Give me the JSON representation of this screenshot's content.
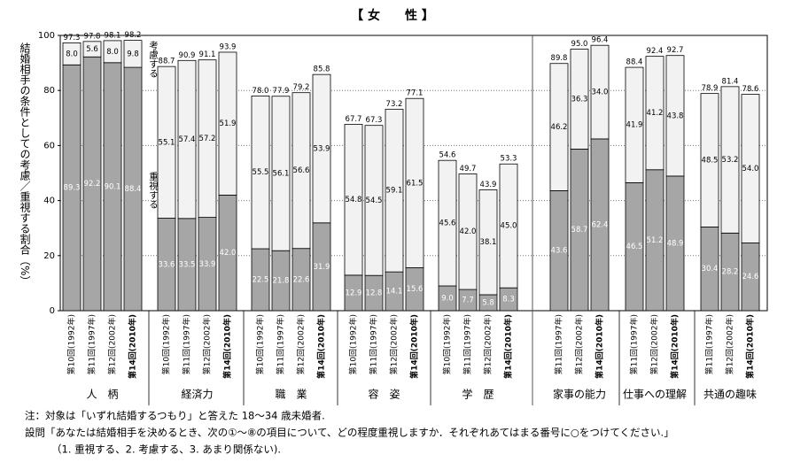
{
  "chart_data": {
    "type": "bar",
    "stacked": true,
    "title": "【 女　　性 】",
    "y_label": "結婚相手の条件としての考慮／重視する割合（%）",
    "ylim": [
      0,
      100
    ],
    "yticks": [
      0,
      20,
      40,
      60,
      80,
      100
    ],
    "grid": true,
    "series": [
      {
        "name": "重視する",
        "color": "#a6a6a6"
      },
      {
        "name": "考慮する",
        "color": "#f2f2f2"
      }
    ],
    "groups": [
      {
        "label": "人　柄",
        "categories": [
          "第10回(1992年)",
          "第11回(1997年)",
          "第12回(2002年)",
          "第14回(2010年)"
        ],
        "values": [
          [
            89.3,
            92.2,
            90.1,
            88.4
          ],
          [
            8.0,
            5.6,
            8.0,
            9.8
          ]
        ],
        "value_labels": [
          [
            "89.3",
            "92.2",
            "90.1",
            "88.4"
          ],
          [
            "8.0",
            "5.6",
            "8.0",
            "9.8"
          ]
        ],
        "totals": [
          97.3,
          97.8,
          98.1,
          98.2
        ],
        "total_labels": [
          "97.3",
          "97.8",
          "98.1",
          "98.2"
        ]
      },
      {
        "label": "経済力",
        "categories": [
          "第10回(1992年)",
          "第11回(1997年)",
          "第12回(2002年)",
          "第14回(2010年)"
        ],
        "values": [
          [
            33.6,
            33.5,
            33.9,
            42.0
          ],
          [
            55.1,
            57.4,
            57.2,
            51.9
          ]
        ],
        "value_labels": [
          [
            "33.6",
            "33.5",
            "33.9",
            "42.0"
          ],
          [
            "55.1",
            "57.4",
            "57.2",
            "51.9"
          ]
        ],
        "totals": [
          88.7,
          90.9,
          91.1,
          93.9
        ],
        "total_labels": [
          "88.7",
          "90.9",
          "91.1",
          "93.9"
        ]
      },
      {
        "label": "職　業",
        "categories": [
          "第10回(1992年)",
          "第11回(1997年)",
          "第12回(2002年)",
          "第14回(2010年)"
        ],
        "values": [
          [
            22.5,
            21.8,
            22.6,
            31.9
          ],
          [
            55.5,
            56.1,
            56.6,
            53.9
          ]
        ],
        "value_labels": [
          [
            "22.5",
            "21.8",
            "22.6",
            "31.9"
          ],
          [
            "55.5",
            "56.1",
            "56.6",
            "53.9"
          ]
        ],
        "totals": [
          78.0,
          77.9,
          79.2,
          85.8
        ],
        "total_labels": [
          "78.0",
          "77.9",
          "79.2",
          "85.8"
        ]
      },
      {
        "label": "容　姿",
        "categories": [
          "第10回(1992年)",
          "第11回(1997年)",
          "第12回(2002年)",
          "第14回(2010年)"
        ],
        "values": [
          [
            12.9,
            12.8,
            14.1,
            15.6
          ],
          [
            54.8,
            54.5,
            59.1,
            61.5
          ]
        ],
        "value_labels": [
          [
            "12.9",
            "12.8",
            "14.1",
            "15.6"
          ],
          [
            "54.8",
            "54.5",
            "59.1",
            "61.5"
          ]
        ],
        "totals": [
          67.7,
          67.3,
          73.2,
          77.1
        ],
        "total_labels": [
          "67.7",
          "67.3",
          "73.2",
          "77.1"
        ]
      },
      {
        "label": "学　歴",
        "categories": [
          "第10回(1992年)",
          "第11回(1997年)",
          "第12回(2002年)",
          "第14回(2010年)"
        ],
        "values": [
          [
            9.0,
            7.7,
            5.8,
            8.3
          ],
          [
            45.6,
            42.0,
            38.1,
            45.0
          ]
        ],
        "value_labels": [
          [
            "9.0",
            "7.7",
            "5.8",
            "8.3"
          ],
          [
            "45.6",
            "42.0",
            "38.1",
            "45.0"
          ]
        ],
        "totals": [
          54.6,
          49.7,
          43.9,
          53.3
        ],
        "total_labels": [
          "54.6",
          "49.7",
          "43.9",
          "53.3"
        ]
      },
      {
        "label": "家事の能力",
        "categories": [
          "第11回(1997年)",
          "第12回(2002年)",
          "第14回(2010年)"
        ],
        "values": [
          [
            43.6,
            58.7,
            62.4
          ],
          [
            46.2,
            36.3,
            34.0
          ]
        ],
        "value_labels": [
          [
            "43.6",
            "58.7",
            "62.4"
          ],
          [
            "46.2",
            "36.3",
            "34.0"
          ]
        ],
        "totals": [
          89.8,
          95.0,
          96.4
        ],
        "total_labels": [
          "89.8",
          "95.0",
          "96.4"
        ]
      },
      {
        "label": "仕事への理解",
        "categories": [
          "第11回(1997年)",
          "第12回(2002年)",
          "第14回(2010年)"
        ],
        "values": [
          [
            46.5,
            51.2,
            48.9
          ],
          [
            41.9,
            41.2,
            43.8
          ]
        ],
        "value_labels": [
          [
            "46.5",
            "51.2",
            "48.9"
          ],
          [
            "41.9",
            "41.2",
            "43.8"
          ]
        ],
        "totals": [
          88.4,
          92.4,
          92.7
        ],
        "total_labels": [
          "88.4",
          "92.4",
          "92.7"
        ]
      },
      {
        "label": "共通の趣味",
        "categories": [
          "第11回(1997年)",
          "第12回(2002年)",
          "第14回(2010年)"
        ],
        "values": [
          [
            30.4,
            28.2,
            24.6
          ],
          [
            48.5,
            53.2,
            54.0
          ]
        ],
        "value_labels": [
          [
            "30.4",
            "28.2",
            "24.6"
          ],
          [
            "48.5",
            "53.2",
            "54.0"
          ]
        ],
        "totals": [
          78.9,
          81.4,
          78.6
        ],
        "total_labels": [
          "78.9",
          "81.4",
          "78.6"
        ]
      }
    ],
    "notes": [
      "注：対象は「いずれ結婚するつもり」と答えた 18～34 歳未婚者.",
      "設問「あなたは結婚相手を決めるとき、次の①～⑧の項目について、どの程度重視しますか．それぞれあてはまる番号に○をつけてください.」",
      "（1. 重視する、2. 考慮する、3. あまり関係ない)."
    ]
  }
}
